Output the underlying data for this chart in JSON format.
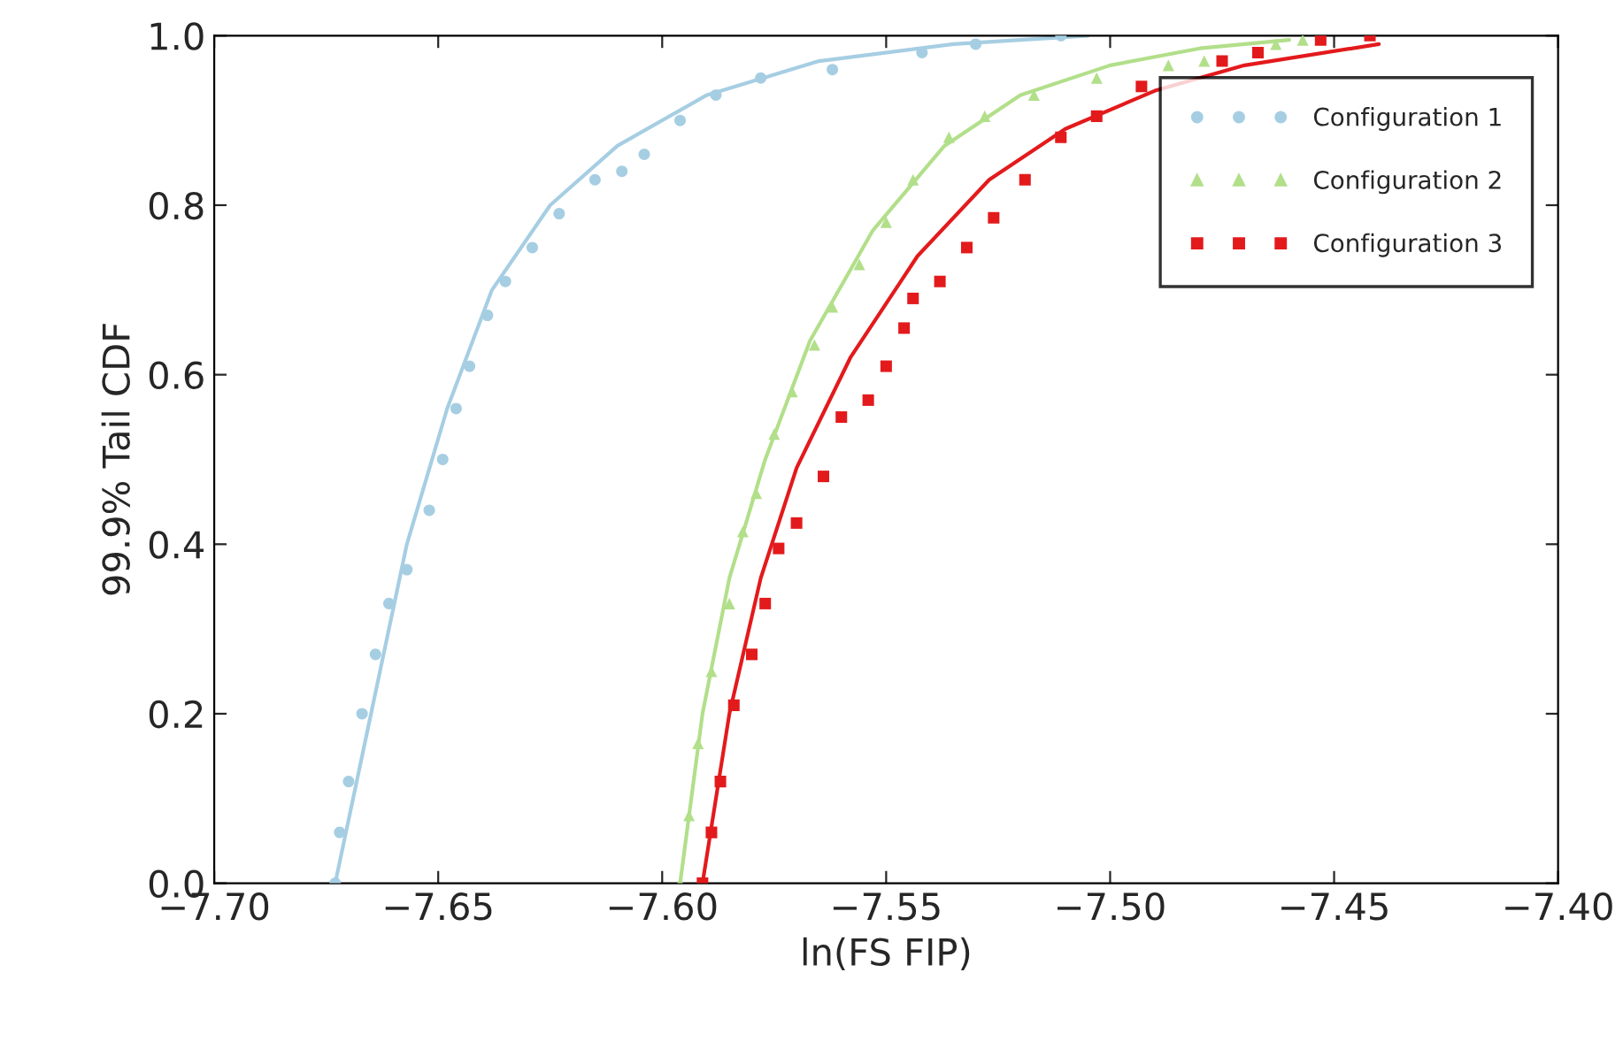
{
  "chart_data": {
    "type": "scatter",
    "xlabel": "ln(FS FIP)",
    "ylabel": "99.9% Tail CDF",
    "xlim": [
      -7.7,
      -7.4
    ],
    "ylim": [
      0.0,
      1.0
    ],
    "xticks": [
      {
        "value": -7.7,
        "label": "−7.70"
      },
      {
        "value": -7.65,
        "label": "−7.65"
      },
      {
        "value": -7.6,
        "label": "−7.60"
      },
      {
        "value": -7.55,
        "label": "−7.55"
      },
      {
        "value": -7.5,
        "label": "−7.50"
      },
      {
        "value": -7.45,
        "label": "−7.45"
      },
      {
        "value": -7.4,
        "label": "−7.40"
      }
    ],
    "yticks": [
      {
        "value": 0.0,
        "label": "0.0"
      },
      {
        "value": 0.2,
        "label": "0.2"
      },
      {
        "value": 0.4,
        "label": "0.4"
      },
      {
        "value": 0.6,
        "label": "0.6"
      },
      {
        "value": 0.8,
        "label": "0.8"
      },
      {
        "value": 1.0,
        "label": "1.0"
      }
    ],
    "grid": false,
    "legend": "top right",
    "series": [
      {
        "name": "Configuration 1",
        "marker": "circle",
        "color": "#a6cee3",
        "x": [
          -7.673,
          -7.672,
          -7.67,
          -7.667,
          -7.664,
          -7.661,
          -7.657,
          -7.652,
          -7.649,
          -7.646,
          -7.643,
          -7.639,
          -7.635,
          -7.629,
          -7.623,
          -7.615,
          -7.609,
          -7.604,
          -7.596,
          -7.588,
          -7.578,
          -7.562,
          -7.542,
          -7.53,
          -7.511
        ],
        "values": [
          0,
          0.06,
          0.12,
          0.2,
          0.27,
          0.33,
          0.37,
          0.44,
          0.5,
          0.56,
          0.61,
          0.67,
          0.71,
          0.75,
          0.79,
          0.83,
          0.84,
          0.86,
          0.9,
          0.93,
          0.95,
          0.96,
          0.98,
          0.99,
          1.0
        ]
      },
      {
        "name": "Configuration 2",
        "marker": "triangle",
        "color": "#b2df8a",
        "x": [
          -7.596,
          -7.594,
          -7.592,
          -7.589,
          -7.585,
          -7.582,
          -7.579,
          -7.575,
          -7.571,
          -7.566,
          -7.562,
          -7.556,
          -7.55,
          -7.544,
          -7.536,
          -7.528,
          -7.517,
          -7.503,
          -7.487,
          -7.479,
          -7.463,
          -7.457
        ],
        "values": [
          0,
          0.08,
          0.165,
          0.25,
          0.33,
          0.415,
          0.46,
          0.53,
          0.58,
          0.635,
          0.68,
          0.73,
          0.78,
          0.83,
          0.88,
          0.905,
          0.93,
          0.95,
          0.965,
          0.97,
          0.99,
          0.995
        ]
      },
      {
        "name": "Configuration 3",
        "marker": "square",
        "color": "#e31a1c",
        "x": [
          -7.591,
          -7.589,
          -7.587,
          -7.584,
          -7.58,
          -7.577,
          -7.574,
          -7.57,
          -7.564,
          -7.56,
          -7.554,
          -7.55,
          -7.546,
          -7.544,
          -7.538,
          -7.532,
          -7.526,
          -7.519,
          -7.511,
          -7.503,
          -7.493,
          -7.475,
          -7.467,
          -7.453,
          -7.442
        ],
        "values": [
          0,
          0.06,
          0.12,
          0.21,
          0.27,
          0.33,
          0.395,
          0.425,
          0.48,
          0.55,
          0.57,
          0.61,
          0.655,
          0.69,
          0.71,
          0.75,
          0.785,
          0.83,
          0.88,
          0.905,
          0.94,
          0.97,
          0.98,
          0.995,
          1.0
        ]
      },
      {
        "type": "line",
        "line_style": "solid",
        "color": "#a6cee3",
        "x": [
          -7.673,
          -7.665,
          -7.657,
          -7.648,
          -7.638,
          -7.625,
          -7.61,
          -7.59,
          -7.565,
          -7.535,
          -7.505
        ],
        "values": [
          0,
          0.2,
          0.4,
          0.56,
          0.7,
          0.8,
          0.87,
          0.93,
          0.97,
          0.99,
          1.0
        ]
      },
      {
        "type": "line",
        "line_style": "solid",
        "color": "#b2df8a",
        "x": [
          -7.596,
          -7.591,
          -7.585,
          -7.577,
          -7.567,
          -7.553,
          -7.537,
          -7.52,
          -7.5,
          -7.48,
          -7.46
        ],
        "values": [
          0,
          0.2,
          0.36,
          0.5,
          0.64,
          0.77,
          0.87,
          0.93,
          0.965,
          0.985,
          0.995
        ]
      },
      {
        "type": "line",
        "line_style": "solid",
        "color": "#e31a1c",
        "x": [
          -7.591,
          -7.585,
          -7.578,
          -7.57,
          -7.558,
          -7.543,
          -7.527,
          -7.51,
          -7.49,
          -7.47,
          -7.44
        ],
        "values": [
          0,
          0.2,
          0.36,
          0.49,
          0.62,
          0.74,
          0.83,
          0.89,
          0.935,
          0.965,
          0.99
        ]
      }
    ]
  }
}
